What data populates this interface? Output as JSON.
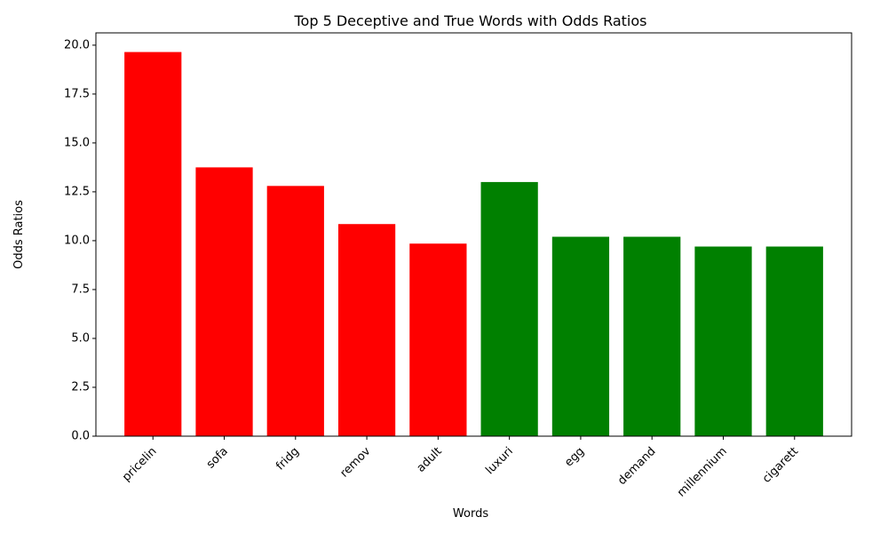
{
  "chart_data": {
    "type": "bar",
    "title": "Top 5 Deceptive and True Words with Odds Ratios",
    "xlabel": "Words",
    "ylabel": "Odds Ratios",
    "categories": [
      "pricelin",
      "sofa",
      "fridg",
      "remov",
      "adult",
      "luxuri",
      "egg",
      "demand",
      "millennium",
      "cigarett"
    ],
    "values": [
      19.65,
      13.75,
      12.8,
      10.85,
      9.85,
      13.0,
      10.2,
      10.2,
      9.7,
      9.7
    ],
    "bar_colors": [
      "#ff0000",
      "#ff0000",
      "#ff0000",
      "#ff0000",
      "#ff0000",
      "#008000",
      "#008000",
      "#008000",
      "#008000",
      "#008000"
    ],
    "ylim": [
      0,
      20.63
    ],
    "yticks": [
      0,
      2.5,
      5,
      7.5,
      10,
      12.5,
      15,
      17.5,
      20
    ],
    "ytick_labels": [
      "0.0",
      "2.5",
      "5.0",
      "7.5",
      "10.0",
      "12.5",
      "15.0",
      "17.5",
      "20.0"
    ],
    "grid": false,
    "legend": "none"
  }
}
